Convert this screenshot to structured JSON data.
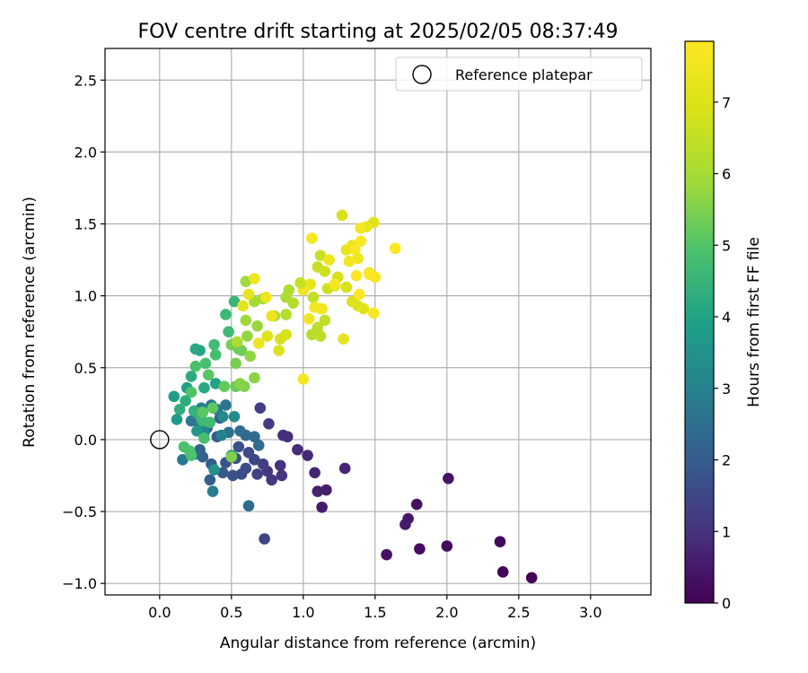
{
  "chart_data": {
    "type": "scatter",
    "title": "FOV centre drift starting at 2025/02/05 08:37:49",
    "xlabel": "Angular distance from reference (arcmin)",
    "ylabel": "Rotation from reference (arcmin)",
    "xlim": [
      -0.38,
      3.42
    ],
    "ylim": [
      -1.08,
      2.72
    ],
    "xticks": [
      "0.0",
      "0.5",
      "1.0",
      "1.5",
      "2.0",
      "2.5",
      "3.0"
    ],
    "yticks": [
      "−1.0",
      "−0.5",
      "0.0",
      "0.5",
      "1.0",
      "1.5",
      "2.0",
      "2.5"
    ],
    "grid": true,
    "legend": {
      "position": "top-right",
      "entries": [
        "Reference platepar"
      ]
    },
    "reference_point": {
      "x": 0.0,
      "y": 0.0
    },
    "colorbar": {
      "label": "Hours from first FF file",
      "range": [
        0,
        7.85
      ],
      "ticks": [
        "0",
        "1",
        "2",
        "3",
        "4",
        "5",
        "6",
        "7"
      ],
      "colormap": "viridis"
    },
    "points": [
      {
        "x": 2.59,
        "y": -0.96,
        "c": 0.05
      },
      {
        "x": 2.39,
        "y": -0.92,
        "c": 0.1
      },
      {
        "x": 2.37,
        "y": -0.71,
        "c": 0.15
      },
      {
        "x": 2.0,
        "y": -0.74,
        "c": 0.2
      },
      {
        "x": 1.81,
        "y": -0.76,
        "c": 0.25
      },
      {
        "x": 1.58,
        "y": -0.8,
        "c": 0.3
      },
      {
        "x": 1.79,
        "y": -0.45,
        "c": 0.35
      },
      {
        "x": 2.01,
        "y": -0.27,
        "c": 0.4
      },
      {
        "x": 1.73,
        "y": -0.55,
        "c": 0.45
      },
      {
        "x": 1.71,
        "y": -0.59,
        "c": 0.5
      },
      {
        "x": 1.13,
        "y": -0.47,
        "c": 0.55
      },
      {
        "x": 1.16,
        "y": -0.35,
        "c": 0.6
      },
      {
        "x": 1.1,
        "y": -0.36,
        "c": 0.65
      },
      {
        "x": 1.08,
        "y": -0.23,
        "c": 0.7
      },
      {
        "x": 1.29,
        "y": -0.2,
        "c": 0.75
      },
      {
        "x": 1.03,
        "y": -0.11,
        "c": 0.8
      },
      {
        "x": 0.96,
        "y": -0.07,
        "c": 0.85
      },
      {
        "x": 0.89,
        "y": 0.02,
        "c": 0.9
      },
      {
        "x": 0.86,
        "y": 0.03,
        "c": 0.95
      },
      {
        "x": 0.84,
        "y": -0.18,
        "c": 1.0
      },
      {
        "x": 0.85,
        "y": -0.25,
        "c": 1.05
      },
      {
        "x": 0.78,
        "y": -0.28,
        "c": 1.1
      },
      {
        "x": 0.75,
        "y": -0.22,
        "c": 1.15
      },
      {
        "x": 0.76,
        "y": 0.11,
        "c": 1.2
      },
      {
        "x": 0.7,
        "y": 0.22,
        "c": 1.25
      },
      {
        "x": 0.72,
        "y": -0.17,
        "c": 1.3
      },
      {
        "x": 0.68,
        "y": -0.24,
        "c": 1.35
      },
      {
        "x": 0.73,
        "y": -0.69,
        "c": 1.4
      },
      {
        "x": 0.66,
        "y": -0.14,
        "c": 1.45
      },
      {
        "x": 0.62,
        "y": -0.09,
        "c": 1.5
      },
      {
        "x": 0.6,
        "y": -0.2,
        "c": 1.55
      },
      {
        "x": 0.57,
        "y": -0.24,
        "c": 1.6
      },
      {
        "x": 0.55,
        "y": -0.05,
        "c": 1.65
      },
      {
        "x": 0.53,
        "y": -0.13,
        "c": 1.7
      },
      {
        "x": 0.51,
        "y": -0.25,
        "c": 1.75
      },
      {
        "x": 0.46,
        "y": -0.16,
        "c": 1.8
      },
      {
        "x": 0.44,
        "y": -0.23,
        "c": 1.85
      },
      {
        "x": 0.42,
        "y": 0.15,
        "c": 1.9
      },
      {
        "x": 0.4,
        "y": 0.02,
        "c": 1.95
      },
      {
        "x": 0.36,
        "y": -0.17,
        "c": 2.0
      },
      {
        "x": 0.35,
        "y": -0.28,
        "c": 2.05
      },
      {
        "x": 0.33,
        "y": 0.08,
        "c": 2.1
      },
      {
        "x": 0.3,
        "y": -0.12,
        "c": 2.15
      },
      {
        "x": 0.28,
        "y": -0.07,
        "c": 2.2
      },
      {
        "x": 0.25,
        "y": -0.1,
        "c": 2.25
      },
      {
        "x": 0.6,
        "y": 0.03,
        "c": 2.3
      },
      {
        "x": 0.66,
        "y": 0.02,
        "c": 2.35
      },
      {
        "x": 0.69,
        "y": -0.04,
        "c": 2.4
      },
      {
        "x": 0.62,
        "y": -0.46,
        "c": 2.45
      },
      {
        "x": 0.56,
        "y": 0.06,
        "c": 2.5
      },
      {
        "x": 0.48,
        "y": 0.05,
        "c": 2.55
      },
      {
        "x": 0.36,
        "y": 0.24,
        "c": 2.6
      },
      {
        "x": 0.4,
        "y": 0.21,
        "c": 2.65
      },
      {
        "x": 0.46,
        "y": 0.24,
        "c": 2.7
      },
      {
        "x": 0.22,
        "y": 0.13,
        "c": 2.75
      },
      {
        "x": 0.16,
        "y": -0.14,
        "c": 2.8
      },
      {
        "x": 0.37,
        "y": -0.36,
        "c": 2.85
      },
      {
        "x": 0.34,
        "y": 0.11,
        "c": 2.9
      },
      {
        "x": 0.29,
        "y": 0.22,
        "c": 2.95
      },
      {
        "x": 0.28,
        "y": 0.1,
        "c": 3.0
      },
      {
        "x": 0.43,
        "y": 0.03,
        "c": 3.05
      },
      {
        "x": 0.31,
        "y": 0.05,
        "c": 3.1
      },
      {
        "x": 0.44,
        "y": 0.16,
        "c": 3.2
      },
      {
        "x": 0.52,
        "y": 0.16,
        "c": 3.3
      },
      {
        "x": 0.5,
        "y": -0.11,
        "c": 3.4
      },
      {
        "x": 0.38,
        "y": -0.21,
        "c": 3.5
      },
      {
        "x": 0.26,
        "y": 0.06,
        "c": 3.6
      },
      {
        "x": 0.12,
        "y": 0.14,
        "c": 3.7
      },
      {
        "x": 0.1,
        "y": 0.3,
        "c": 3.8
      },
      {
        "x": 0.19,
        "y": 0.36,
        "c": 3.9
      },
      {
        "x": 0.39,
        "y": 0.39,
        "c": 4.0
      },
      {
        "x": 0.28,
        "y": 0.62,
        "c": 4.05
      },
      {
        "x": 0.25,
        "y": 0.63,
        "c": 4.1
      },
      {
        "x": 0.31,
        "y": 0.36,
        "c": 4.15
      },
      {
        "x": 0.22,
        "y": 0.44,
        "c": 4.2
      },
      {
        "x": 0.18,
        "y": 0.27,
        "c": 4.25
      },
      {
        "x": 0.14,
        "y": 0.21,
        "c": 4.3
      },
      {
        "x": 0.24,
        "y": 0.2,
        "c": 4.4
      },
      {
        "x": 0.27,
        "y": 0.18,
        "c": 4.5
      },
      {
        "x": 0.3,
        "y": 0.13,
        "c": 4.6
      },
      {
        "x": 0.35,
        "y": 0.12,
        "c": 4.7
      },
      {
        "x": 0.31,
        "y": 0.01,
        "c": 4.8
      },
      {
        "x": 0.21,
        "y": -0.08,
        "c": 4.85
      },
      {
        "x": 0.17,
        "y": -0.05,
        "c": 4.9
      },
      {
        "x": 0.22,
        "y": -0.11,
        "c": 4.95
      },
      {
        "x": 0.52,
        "y": 0.96,
        "c": 4.55
      },
      {
        "x": 0.46,
        "y": 0.87,
        "c": 4.6
      },
      {
        "x": 0.48,
        "y": 0.75,
        "c": 4.7
      },
      {
        "x": 0.38,
        "y": 0.66,
        "c": 4.75
      },
      {
        "x": 0.39,
        "y": 0.59,
        "c": 4.8
      },
      {
        "x": 0.32,
        "y": 0.53,
        "c": 4.85
      },
      {
        "x": 0.25,
        "y": 0.51,
        "c": 4.9
      },
      {
        "x": 0.22,
        "y": 0.33,
        "c": 5.0
      },
      {
        "x": 0.34,
        "y": 0.45,
        "c": 5.05
      },
      {
        "x": 0.3,
        "y": 0.19,
        "c": 5.1
      },
      {
        "x": 0.37,
        "y": 0.22,
        "c": 5.15
      },
      {
        "x": 0.45,
        "y": 0.37,
        "c": 5.2
      },
      {
        "x": 0.53,
        "y": 0.37,
        "c": 5.25
      },
      {
        "x": 0.55,
        "y": 0.63,
        "c": 5.3
      },
      {
        "x": 0.57,
        "y": 0.62,
        "c": 5.35
      },
      {
        "x": 0.5,
        "y": 0.66,
        "c": 5.4
      },
      {
        "x": 0.53,
        "y": 0.53,
        "c": 5.45
      },
      {
        "x": 0.5,
        "y": -0.12,
        "c": 5.5
      },
      {
        "x": 0.59,
        "y": 0.37,
        "c": 5.55
      },
      {
        "x": 0.56,
        "y": 0.39,
        "c": 5.6
      },
      {
        "x": 0.66,
        "y": 0.43,
        "c": 5.65
      },
      {
        "x": 0.63,
        "y": 0.58,
        "c": 5.7
      },
      {
        "x": 0.61,
        "y": 0.72,
        "c": 5.75
      },
      {
        "x": 0.68,
        "y": 0.79,
        "c": 5.8
      },
      {
        "x": 0.6,
        "y": 0.83,
        "c": 5.85
      },
      {
        "x": 0.6,
        "y": 1.1,
        "c": 5.9
      },
      {
        "x": 0.72,
        "y": 0.98,
        "c": 5.95
      },
      {
        "x": 0.66,
        "y": 0.96,
        "c": 6.0
      },
      {
        "x": 0.8,
        "y": 0.86,
        "c": 6.05
      },
      {
        "x": 0.88,
        "y": 0.99,
        "c": 6.1
      },
      {
        "x": 0.9,
        "y": 1.04,
        "c": 6.15
      },
      {
        "x": 0.93,
        "y": 0.95,
        "c": 6.2
      },
      {
        "x": 0.88,
        "y": 0.87,
        "c": 6.25
      },
      {
        "x": 1.06,
        "y": 0.73,
        "c": 6.3
      },
      {
        "x": 1.1,
        "y": 0.78,
        "c": 6.35
      },
      {
        "x": 1.12,
        "y": 0.72,
        "c": 6.4
      },
      {
        "x": 1.15,
        "y": 0.83,
        "c": 6.45
      },
      {
        "x": 1.07,
        "y": 0.99,
        "c": 6.5
      },
      {
        "x": 1.1,
        "y": 1.2,
        "c": 6.55
      },
      {
        "x": 1.12,
        "y": 1.28,
        "c": 6.6
      },
      {
        "x": 1.15,
        "y": 1.17,
        "c": 6.65
      },
      {
        "x": 1.17,
        "y": 1.05,
        "c": 6.7
      },
      {
        "x": 1.22,
        "y": 1.07,
        "c": 6.75
      },
      {
        "x": 1.24,
        "y": 1.13,
        "c": 6.8
      },
      {
        "x": 1.3,
        "y": 1.06,
        "c": 6.85
      },
      {
        "x": 1.27,
        "y": 1.56,
        "c": 6.9
      },
      {
        "x": 1.34,
        "y": 0.96,
        "c": 6.95
      },
      {
        "x": 1.38,
        "y": 0.93,
        "c": 7.0
      },
      {
        "x": 1.42,
        "y": 0.91,
        "c": 7.05
      },
      {
        "x": 1.46,
        "y": 1.16,
        "c": 7.1
      },
      {
        "x": 1.49,
        "y": 1.51,
        "c": 7.15
      },
      {
        "x": 1.44,
        "y": 1.48,
        "c": 7.2
      },
      {
        "x": 1.28,
        "y": 0.7,
        "c": 7.25
      },
      {
        "x": 1.3,
        "y": 1.32,
        "c": 7.3
      },
      {
        "x": 1.34,
        "y": 1.35,
        "c": 7.35
      },
      {
        "x": 1.38,
        "y": 1.26,
        "c": 7.4
      },
      {
        "x": 1.0,
        "y": 1.04,
        "c": 7.45
      },
      {
        "x": 1.04,
        "y": 0.84,
        "c": 7.5
      },
      {
        "x": 1.12,
        "y": 0.91,
        "c": 7.55
      },
      {
        "x": 1.06,
        "y": 1.4,
        "c": 7.6
      },
      {
        "x": 1.4,
        "y": 1.47,
        "c": 7.65
      },
      {
        "x": 1.49,
        "y": 0.88,
        "c": 7.7
      },
      {
        "x": 1.5,
        "y": 1.13,
        "c": 7.75
      },
      {
        "x": 1.64,
        "y": 1.33,
        "c": 7.8
      },
      {
        "x": 1.37,
        "y": 1.14,
        "c": 7.82
      },
      {
        "x": 1.39,
        "y": 1.01,
        "c": 7.84
      },
      {
        "x": 1.0,
        "y": 0.42,
        "c": 7.6
      },
      {
        "x": 0.66,
        "y": 1.12,
        "c": 7.5
      },
      {
        "x": 0.62,
        "y": 1.01,
        "c": 7.3
      },
      {
        "x": 0.58,
        "y": 0.93,
        "c": 7.2
      },
      {
        "x": 0.75,
        "y": 0.72,
        "c": 7.1
      },
      {
        "x": 0.83,
        "y": 0.62,
        "c": 7.0
      },
      {
        "x": 0.88,
        "y": 0.73,
        "c": 6.9
      },
      {
        "x": 0.84,
        "y": 0.7,
        "c": 6.8
      },
      {
        "x": 0.78,
        "y": 0.86,
        "c": 7.4
      },
      {
        "x": 0.74,
        "y": 0.99,
        "c": 7.5
      },
      {
        "x": 1.08,
        "y": 0.92,
        "c": 7.55
      },
      {
        "x": 1.13,
        "y": 0.91,
        "c": 7.65
      },
      {
        "x": 1.22,
        "y": 1.08,
        "c": 7.7
      },
      {
        "x": 1.32,
        "y": 1.24,
        "c": 7.6
      },
      {
        "x": 1.36,
        "y": 1.32,
        "c": 7.75
      },
      {
        "x": 1.4,
        "y": 1.38,
        "c": 7.8
      },
      {
        "x": 1.46,
        "y": 1.15,
        "c": 7.8
      },
      {
        "x": 1.18,
        "y": 1.25,
        "c": 7.45
      },
      {
        "x": 1.05,
        "y": 1.08,
        "c": 7.35
      },
      {
        "x": 0.98,
        "y": 1.09,
        "c": 6.6
      },
      {
        "x": 0.69,
        "y": 0.67,
        "c": 7.4
      },
      {
        "x": 0.54,
        "y": 0.68,
        "c": 6.1
      }
    ]
  }
}
